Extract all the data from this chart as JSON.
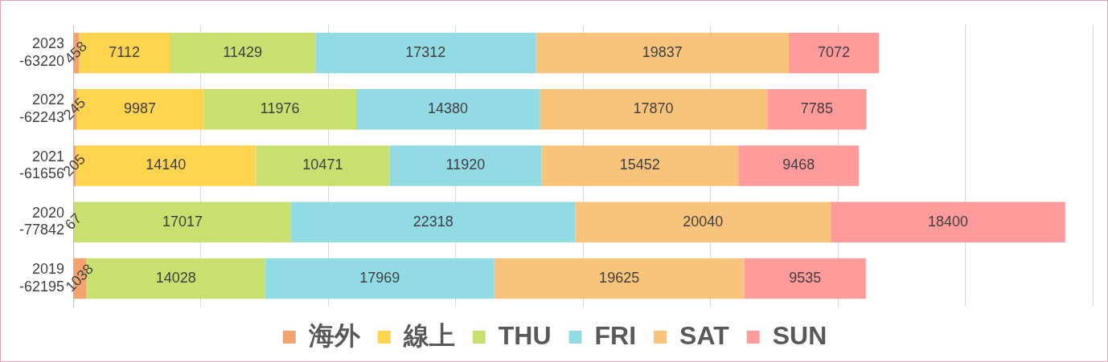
{
  "chart_data": {
    "type": "bar",
    "orientation": "horizontal",
    "stacked": true,
    "categories": [
      "2023 -63220",
      "2022 -62243",
      "2021 -61656",
      "2020 -77842",
      "2019 -62195"
    ],
    "series": [
      {
        "name": "海外",
        "color": "#f2a36e",
        "values": [
          458,
          245,
          205,
          67,
          1038
        ]
      },
      {
        "name": "線上",
        "color": "#ffd44f",
        "values": [
          7112,
          9987,
          14140,
          null,
          null
        ]
      },
      {
        "name": "THU",
        "color": "#c8e070",
        "values": [
          11429,
          11976,
          10471,
          17017,
          14028
        ]
      },
      {
        "name": "FRI",
        "color": "#92dbe5",
        "values": [
          17312,
          14380,
          11920,
          22318,
          17969
        ]
      },
      {
        "name": "SAT",
        "color": "#f8c47c",
        "values": [
          19837,
          17870,
          15452,
          20040,
          19625
        ]
      },
      {
        "name": "SUN",
        "color": "#ff9b9b",
        "values": [
          7072,
          7785,
          9468,
          18400,
          9535
        ]
      }
    ],
    "xlim": [
      0,
      80000
    ],
    "xticks": [
      {
        "value": 0,
        "label": null
      },
      {
        "value": 10000,
        "label": null
      },
      {
        "value": 20000,
        "label": null
      },
      {
        "value": 30000,
        "label": null
      },
      {
        "value": 40000,
        "label": null
      },
      {
        "value": 50000,
        "label": null
      },
      {
        "value": 60000,
        "label": null
      },
      {
        "value": 70000,
        "label": null
      },
      {
        "value": 80000,
        "label": null
      }
    ],
    "tick_labels": "y",
    "grid": "x",
    "legend": "bottom",
    "data_labels": true
  }
}
